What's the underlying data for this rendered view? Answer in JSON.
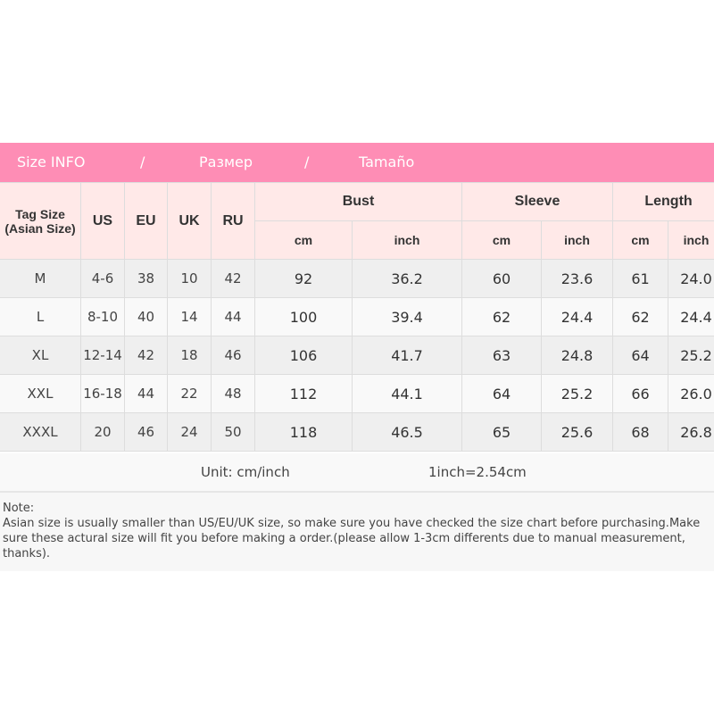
{
  "banner": {
    "en": "Size INFO",
    "sep1": "/",
    "ru": "Размер",
    "sep2": "/",
    "es": "Tamaño",
    "color": "#fe8db5"
  },
  "table": {
    "headers": {
      "tag": "Tag Size",
      "tag_sub": "(Asian Size)",
      "us": "US",
      "eu": "EU",
      "uk": "UK",
      "ru": "RU",
      "bust": "Bust",
      "sleeve": "Sleeve",
      "length": "Length",
      "cm": "cm",
      "inch": "inch"
    },
    "rows": [
      [
        "M",
        "4-6",
        "38",
        "10",
        "42",
        "92",
        "36.2",
        "60",
        "23.6",
        "61",
        "24.0"
      ],
      [
        "L",
        "8-10",
        "40",
        "14",
        "44",
        "100",
        "39.4",
        "62",
        "24.4",
        "62",
        "24.4"
      ],
      [
        "XL",
        "12-14",
        "42",
        "18",
        "46",
        "106",
        "41.7",
        "63",
        "24.8",
        "64",
        "25.2"
      ],
      [
        "XXL",
        "16-18",
        "44",
        "22",
        "48",
        "112",
        "44.1",
        "64",
        "25.2",
        "66",
        "26.0"
      ],
      [
        "XXXL",
        "20",
        "46",
        "24",
        "50",
        "118",
        "46.5",
        "65",
        "25.6",
        "68",
        "26.8"
      ]
    ]
  },
  "unit": {
    "label": "Unit: cm/inch",
    "conversion": "1inch=2.54cm"
  },
  "note": {
    "title": "Note:",
    "body": "Asian size is usually smaller than US/EU/UK size, so make sure you have checked the size chart before purchasing.Make sure these actural size will fit you before making a order.(please allow 1-3cm differents due to manual measurement, thanks)."
  }
}
